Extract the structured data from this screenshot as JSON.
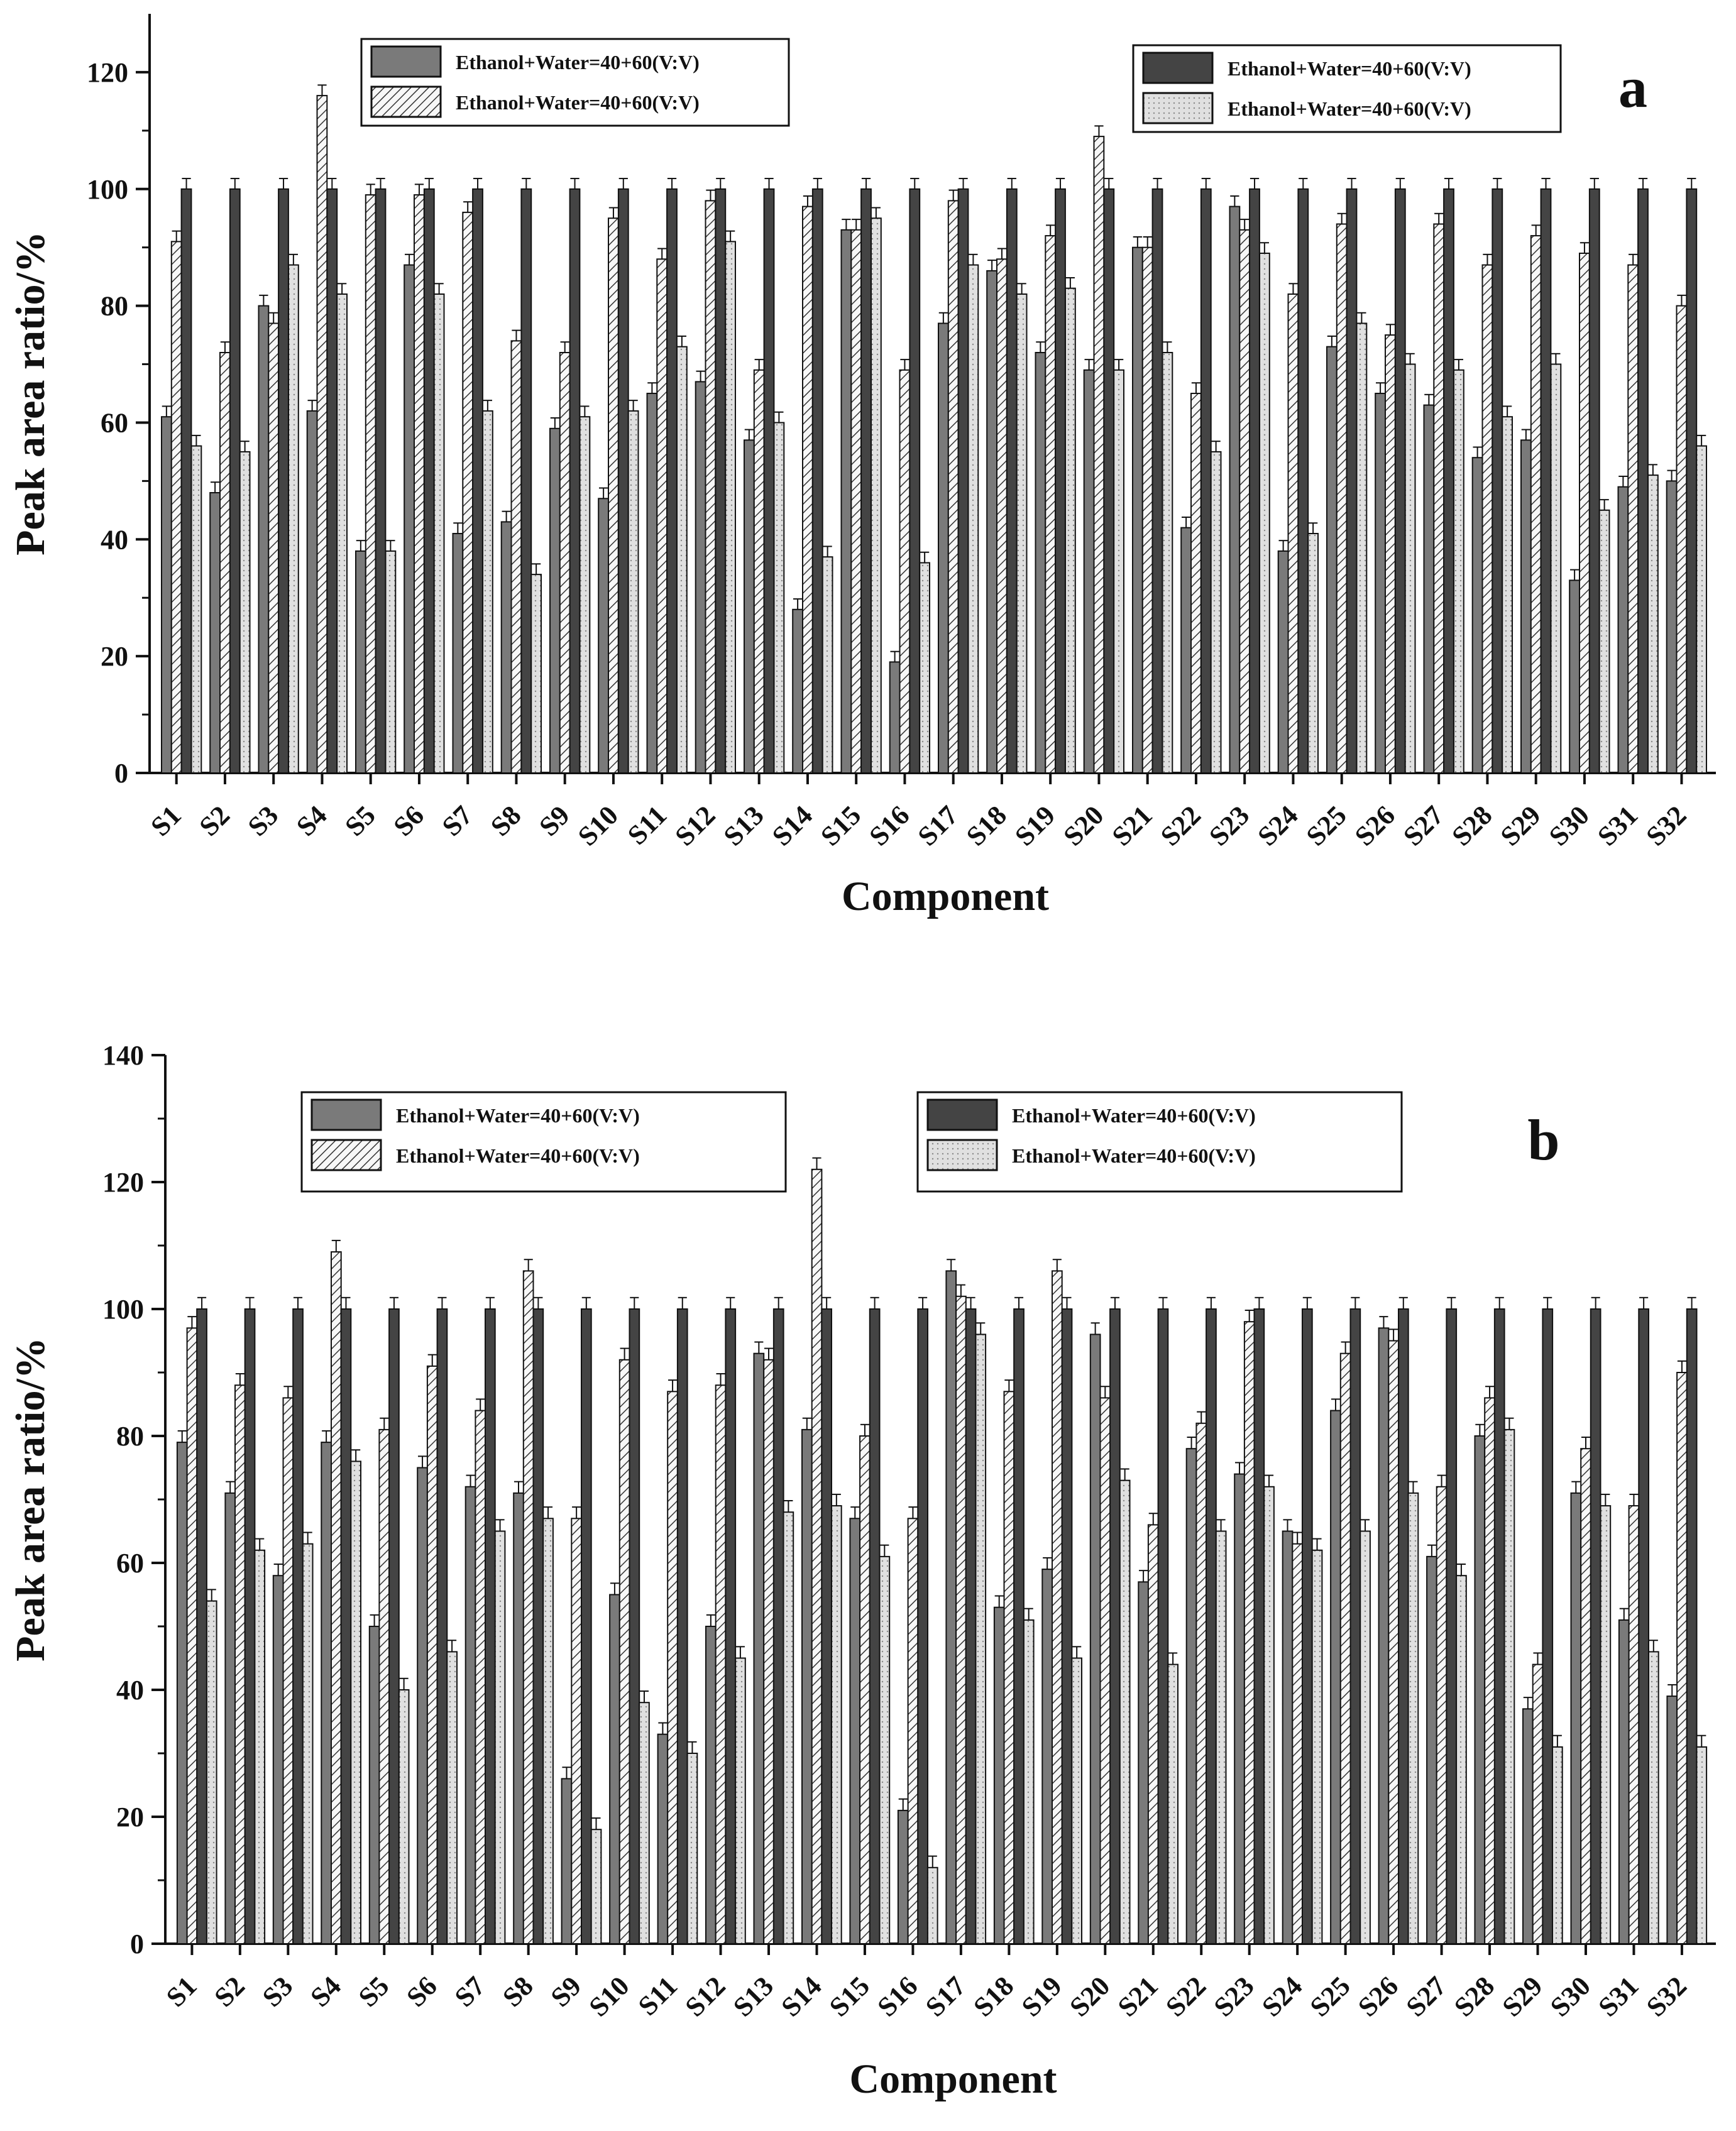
{
  "figure": {
    "colors": {
      "series1": "#7a7a7a",
      "series2": "#f2f2f2",
      "series3": "#444444",
      "series4": "#d9d9d9",
      "ink": "#111111",
      "background": "#ffffff"
    }
  },
  "chart_data": [
    {
      "type": "bar",
      "panel_label": "a",
      "xlabel": "Component",
      "ylabel": "Peak area ratio/%",
      "ylim": [
        0,
        130
      ],
      "yticks": [
        0,
        20,
        40,
        60,
        80,
        100,
        120
      ],
      "legend": [
        {
          "name": "Ethanol+Water=40+60(V:V)",
          "pattern": "solid-medium"
        },
        {
          "name": "Ethanol+Water=40+60(V:V)",
          "pattern": "hatched"
        },
        {
          "name": "Ethanol+Water=40+60(V:V)",
          "pattern": "solid-dark"
        },
        {
          "name": "Ethanol+Water=40+60(V:V)",
          "pattern": "light"
        }
      ],
      "categories": [
        "S1",
        "S2",
        "S3",
        "S4",
        "S5",
        "S6",
        "S7",
        "S8",
        "S9",
        "S10",
        "S11",
        "S12",
        "S13",
        "S14",
        "S15",
        "S16",
        "S17",
        "S18",
        "S19",
        "S20",
        "S21",
        "S22",
        "S23",
        "S24",
        "S25",
        "S26",
        "S27",
        "S28",
        "S29",
        "S30",
        "S31",
        "S32"
      ],
      "series": [
        {
          "name": "Ethanol+Water=40+60(V:V)",
          "values": [
            61,
            48,
            80,
            62,
            38,
            87,
            41,
            43,
            59,
            47,
            65,
            67,
            57,
            28,
            93,
            19,
            77,
            86,
            72,
            69,
            90,
            42,
            97,
            38,
            73,
            65,
            63,
            54,
            57,
            33,
            49,
            50
          ]
        },
        {
          "name": "Ethanol+Water=40+60(V:V)",
          "values": [
            91,
            72,
            77,
            116,
            99,
            99,
            96,
            74,
            72,
            95,
            88,
            98,
            69,
            97,
            93,
            69,
            98,
            88,
            92,
            109,
            90,
            65,
            93,
            82,
            94,
            75,
            94,
            87,
            92,
            89,
            87,
            80
          ]
        },
        {
          "name": "Ethanol+Water=40+60(V:V)",
          "values": [
            100,
            100,
            100,
            100,
            100,
            100,
            100,
            100,
            100,
            100,
            100,
            100,
            100,
            100,
            100,
            100,
            100,
            100,
            100,
            100,
            100,
            100,
            100,
            100,
            100,
            100,
            100,
            100,
            100,
            100,
            100,
            100
          ]
        },
        {
          "name": "Ethanol+Water=40+60(V:V)",
          "values": [
            56,
            55,
            87,
            82,
            38,
            82,
            62,
            34,
            61,
            62,
            73,
            91,
            60,
            37,
            95,
            36,
            87,
            82,
            83,
            69,
            72,
            55,
            89,
            41,
            77,
            70,
            69,
            61,
            70,
            45,
            51,
            56
          ]
        }
      ]
    },
    {
      "type": "bar",
      "panel_label": "b",
      "xlabel": "Component",
      "ylabel": "Peak area ratio/%",
      "ylim": [
        0,
        140
      ],
      "yticks": [
        0,
        20,
        40,
        60,
        80,
        100,
        120,
        140
      ],
      "legend": [
        {
          "name": "Ethanol+Water=40+60(V:V)",
          "pattern": "solid-medium"
        },
        {
          "name": "Ethanol+Water=40+60(V:V)",
          "pattern": "hatched"
        },
        {
          "name": "Ethanol+Water=40+60(V:V)",
          "pattern": "solid-dark"
        },
        {
          "name": "Ethanol+Water=40+60(V:V)",
          "pattern": "light"
        }
      ],
      "categories": [
        "S1",
        "S2",
        "S3",
        "S4",
        "S5",
        "S6",
        "S7",
        "S8",
        "S9",
        "S10",
        "S11",
        "S12",
        "S13",
        "S14",
        "S15",
        "S16",
        "S17",
        "S18",
        "S19",
        "S20",
        "S21",
        "S22",
        "S23",
        "S24",
        "S25",
        "S26",
        "S27",
        "S28",
        "S29",
        "S30",
        "S31",
        "S32"
      ],
      "series": [
        {
          "name": "Ethanol+Water=40+60(V:V)",
          "values": [
            79,
            71,
            58,
            79,
            50,
            75,
            72,
            71,
            26,
            55,
            33,
            50,
            93,
            81,
            67,
            21,
            106,
            53,
            59,
            96,
            57,
            78,
            74,
            65,
            84,
            97,
            61,
            80,
            37,
            71,
            51,
            39
          ]
        },
        {
          "name": "Ethanol+Water=40+60(V:V)",
          "values": [
            97,
            88,
            86,
            109,
            81,
            91,
            84,
            106,
            67,
            92,
            87,
            88,
            92,
            122,
            80,
            67,
            102,
            87,
            106,
            86,
            66,
            82,
            98,
            63,
            93,
            95,
            72,
            86,
            44,
            78,
            69,
            90
          ]
        },
        {
          "name": "Ethanol+Water=40+60(V:V)",
          "values": [
            100,
            100,
            100,
            100,
            100,
            100,
            100,
            100,
            100,
            100,
            100,
            100,
            100,
            100,
            100,
            100,
            100,
            100,
            100,
            100,
            100,
            100,
            100,
            100,
            100,
            100,
            100,
            100,
            100,
            100,
            100,
            100
          ]
        },
        {
          "name": "Ethanol+Water=40+60(V:V)",
          "values": [
            54,
            62,
            63,
            76,
            40,
            46,
            65,
            67,
            18,
            38,
            30,
            45,
            68,
            69,
            61,
            12,
            96,
            51,
            45,
            73,
            44,
            65,
            72,
            62,
            65,
            71,
            58,
            81,
            31,
            69,
            46,
            31
          ]
        }
      ]
    }
  ]
}
